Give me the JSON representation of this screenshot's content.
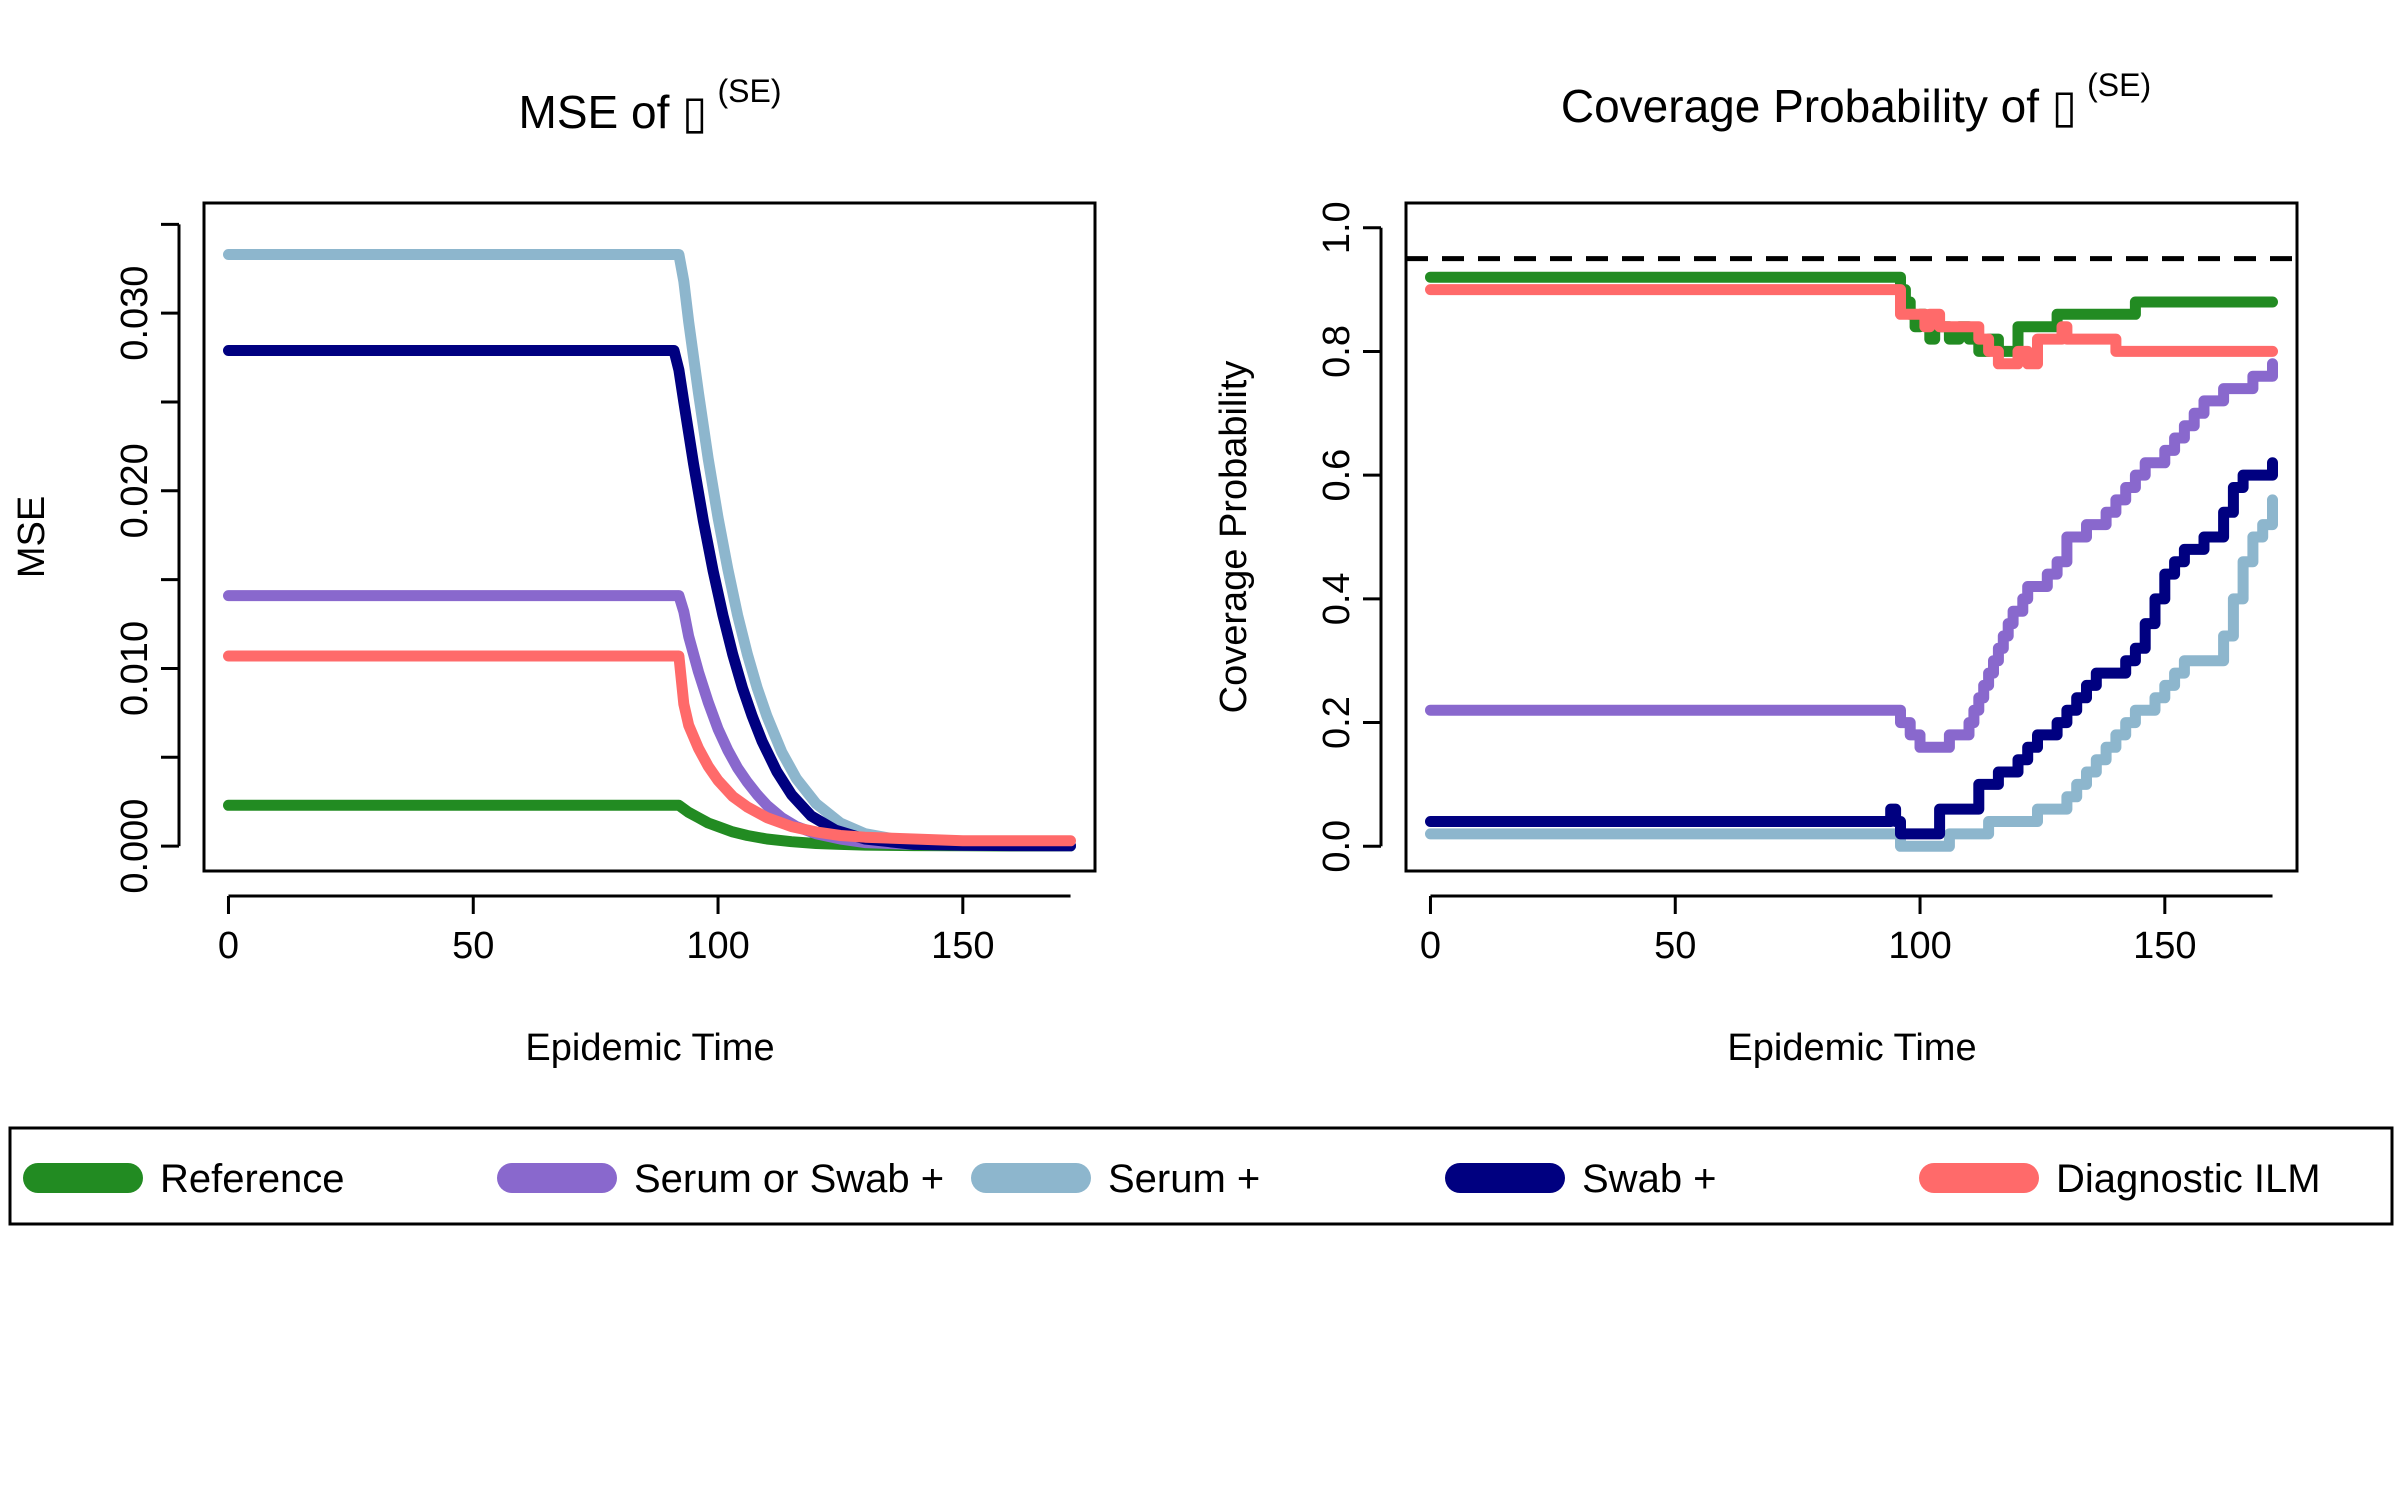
{
  "chart_data": [
    {
      "type": "line",
      "title": "MSE of ",
      "title_symbol": "▯",
      "title_superscript": "(SE)",
      "xlabel": "Epidemic Time",
      "ylabel": "MSE",
      "xlim": [
        -5,
        177
      ],
      "ylim": [
        -0.0014,
        0.0362
      ],
      "xticks": [
        0,
        50,
        100,
        150
      ],
      "yticks_labeled": [
        0.0,
        0.01,
        0.02,
        0.03
      ],
      "yticks_all": [
        0.0,
        0.005,
        0.01,
        0.015,
        0.02,
        0.025,
        0.03,
        0.035
      ],
      "ytick_labels": [
        "0.000",
        "0.010",
        "0.020",
        "0.030"
      ],
      "xtick_labels": [
        "0",
        "50",
        "100",
        "150"
      ],
      "grid": false,
      "series": [
        {
          "name": "Reference",
          "color": "#228B22",
          "x": [
            0,
            92,
            94,
            96,
            98,
            100,
            103,
            106,
            110,
            115,
            120,
            125,
            130,
            140,
            150,
            160,
            172
          ],
          "y": [
            0.0023,
            0.0023,
            0.0019,
            0.0016,
            0.0013,
            0.0011,
            0.0008,
            0.0006,
            0.0004,
            0.00025,
            0.00015,
            0.0001,
            6e-05,
            3e-05,
            2e-05,
            1e-05,
            1e-05
          ]
        },
        {
          "name": "Serum or Swab +",
          "color": "#8968CD",
          "x": [
            0,
            92,
            93,
            94,
            96,
            98,
            100,
            102,
            104,
            106,
            108,
            110,
            113,
            116,
            120,
            125,
            130,
            140,
            150,
            160,
            172
          ],
          "y": [
            0.0141,
            0.0141,
            0.0132,
            0.0118,
            0.0098,
            0.0081,
            0.0066,
            0.0054,
            0.0044,
            0.0036,
            0.0029,
            0.0023,
            0.0016,
            0.0011,
            0.0007,
            0.0004,
            0.0002,
            0.0001,
            5e-05,
            3e-05,
            2e-05
          ]
        },
        {
          "name": "Serum +",
          "color": "#8DB6CD",
          "x": [
            0,
            92,
            93,
            94,
            96,
            98,
            100,
            102,
            104,
            106,
            108,
            110,
            113,
            116,
            120,
            125,
            130,
            140,
            150,
            160,
            172
          ],
          "y": [
            0.0333,
            0.0333,
            0.0318,
            0.0295,
            0.0255,
            0.0218,
            0.0185,
            0.0156,
            0.013,
            0.0108,
            0.0089,
            0.0073,
            0.0053,
            0.0038,
            0.0024,
            0.0013,
            0.0007,
            0.0002,
            0.0001,
            5e-05,
            3e-05
          ]
        },
        {
          "name": "Swab +",
          "color": "#000080",
          "x": [
            0,
            91,
            92,
            93,
            95,
            97,
            99,
            101,
            103,
            105,
            107,
            109,
            112,
            115,
            119,
            124,
            130,
            140,
            150,
            160,
            172
          ],
          "y": [
            0.0279,
            0.0279,
            0.0268,
            0.025,
            0.0215,
            0.0183,
            0.0155,
            0.013,
            0.0108,
            0.0089,
            0.0073,
            0.0059,
            0.0042,
            0.0029,
            0.0017,
            0.0009,
            0.0004,
            0.0001,
            5e-05,
            3e-05,
            2e-05
          ]
        },
        {
          "name": "Diagnostic ILM",
          "color": "#FF6A6A",
          "x": [
            0,
            92,
            93,
            94,
            96,
            98,
            100,
            103,
            106,
            110,
            115,
            120,
            125,
            130,
            140,
            150,
            160,
            172
          ],
          "y": [
            0.0107,
            0.0107,
            0.008,
            0.0068,
            0.0055,
            0.0045,
            0.0037,
            0.0028,
            0.0022,
            0.0016,
            0.0011,
            0.0008,
            0.0006,
            0.0005,
            0.0004,
            0.0003,
            0.0003,
            0.0003
          ]
        }
      ]
    },
    {
      "type": "line",
      "title": "Coverage Probability of ",
      "title_symbol": "▯",
      "title_superscript": "(SE)",
      "xlabel": "Epidemic Time",
      "ylabel": "Coverage Probability",
      "xlim": [
        -5,
        177
      ],
      "ylim": [
        -0.04,
        1.04
      ],
      "xticks": [
        0,
        50,
        100,
        150
      ],
      "yticks": [
        0.0,
        0.2,
        0.4,
        0.6,
        0.8,
        1.0
      ],
      "xtick_labels": [
        "0",
        "50",
        "100",
        "150"
      ],
      "ytick_labels": [
        "0.0",
        "0.2",
        "0.4",
        "0.6",
        "0.8",
        "1.0"
      ],
      "grid": false,
      "reference_line": {
        "y": 0.95,
        "style": "dashed",
        "color": "#000000"
      },
      "series": [
        {
          "name": "Reference",
          "color": "#228B22",
          "x": [
            0,
            94,
            96,
            97,
            98,
            99,
            100,
            101,
            102,
            103,
            104,
            106,
            108,
            110,
            112,
            114,
            116,
            118,
            120,
            124,
            126,
            128,
            130,
            134,
            138,
            142,
            144,
            146,
            150,
            160,
            172
          ],
          "y": [
            0.92,
            0.92,
            0.9,
            0.88,
            0.86,
            0.84,
            0.86,
            0.84,
            0.82,
            0.84,
            0.84,
            0.82,
            0.84,
            0.82,
            0.8,
            0.82,
            0.8,
            0.8,
            0.84,
            0.84,
            0.84,
            0.86,
            0.86,
            0.86,
            0.86,
            0.86,
            0.88,
            0.88,
            0.88,
            0.88,
            0.88
          ]
        },
        {
          "name": "Serum or Swab +",
          "color": "#8968CD",
          "x": [
            0,
            94,
            96,
            98,
            100,
            102,
            104,
            106,
            108,
            110,
            111,
            112,
            113,
            114,
            115,
            116,
            117,
            118,
            119,
            120,
            121,
            122,
            124,
            126,
            128,
            130,
            132,
            134,
            136,
            138,
            140,
            142,
            144,
            146,
            148,
            150,
            152,
            154,
            156,
            158,
            160,
            162,
            164,
            166,
            168,
            170,
            172
          ],
          "y": [
            0.22,
            0.22,
            0.2,
            0.18,
            0.16,
            0.16,
            0.16,
            0.18,
            0.18,
            0.2,
            0.22,
            0.24,
            0.26,
            0.28,
            0.3,
            0.32,
            0.34,
            0.36,
            0.38,
            0.38,
            0.4,
            0.42,
            0.42,
            0.44,
            0.46,
            0.5,
            0.5,
            0.52,
            0.52,
            0.54,
            0.56,
            0.58,
            0.6,
            0.62,
            0.62,
            0.64,
            0.66,
            0.68,
            0.7,
            0.72,
            0.72,
            0.74,
            0.74,
            0.74,
            0.76,
            0.76,
            0.78
          ]
        },
        {
          "name": "Serum +",
          "color": "#8DB6CD",
          "x": [
            0,
            94,
            96,
            100,
            104,
            106,
            110,
            114,
            118,
            120,
            124,
            126,
            128,
            130,
            132,
            134,
            136,
            138,
            140,
            142,
            144,
            146,
            148,
            150,
            152,
            154,
            156,
            158,
            160,
            162,
            164,
            166,
            168,
            170,
            172
          ],
          "y": [
            0.02,
            0.02,
            0.0,
            0.0,
            0.0,
            0.02,
            0.02,
            0.04,
            0.04,
            0.04,
            0.06,
            0.06,
            0.06,
            0.08,
            0.1,
            0.12,
            0.14,
            0.16,
            0.18,
            0.2,
            0.22,
            0.22,
            0.24,
            0.26,
            0.28,
            0.3,
            0.3,
            0.3,
            0.3,
            0.34,
            0.4,
            0.46,
            0.5,
            0.52,
            0.56
          ]
        },
        {
          "name": "Swab +",
          "color": "#000080",
          "x": [
            0,
            93,
            94,
            95,
            96,
            98,
            100,
            102,
            104,
            106,
            108,
            110,
            112,
            114,
            116,
            118,
            120,
            122,
            124,
            126,
            128,
            130,
            132,
            134,
            136,
            138,
            140,
            142,
            144,
            146,
            148,
            150,
            152,
            154,
            156,
            158,
            160,
            162,
            164,
            166,
            168,
            170,
            172
          ],
          "y": [
            0.04,
            0.04,
            0.06,
            0.04,
            0.02,
            0.02,
            0.02,
            0.02,
            0.06,
            0.06,
            0.06,
            0.06,
            0.1,
            0.1,
            0.12,
            0.12,
            0.14,
            0.16,
            0.18,
            0.18,
            0.2,
            0.22,
            0.24,
            0.26,
            0.28,
            0.28,
            0.28,
            0.3,
            0.32,
            0.36,
            0.4,
            0.44,
            0.46,
            0.48,
            0.48,
            0.5,
            0.5,
            0.54,
            0.58,
            0.6,
            0.6,
            0.6,
            0.62
          ]
        },
        {
          "name": "Diagnostic ILM",
          "color": "#FF6A6A",
          "x": [
            0,
            94,
            96,
            98,
            100,
            101,
            102,
            104,
            108,
            110,
            112,
            114,
            116,
            118,
            120,
            122,
            124,
            126,
            128,
            129,
            130,
            132,
            134,
            138,
            140,
            150,
            160,
            172
          ],
          "y": [
            0.9,
            0.9,
            0.86,
            0.86,
            0.86,
            0.84,
            0.86,
            0.84,
            0.84,
            0.84,
            0.82,
            0.8,
            0.78,
            0.78,
            0.8,
            0.78,
            0.82,
            0.82,
            0.82,
            0.84,
            0.82,
            0.82,
            0.82,
            0.82,
            0.8,
            0.8,
            0.8,
            0.8
          ]
        }
      ]
    }
  ],
  "legend": {
    "placement": "bottom",
    "items": [
      {
        "label": "Reference",
        "color": "#228B22"
      },
      {
        "label": "Serum or Swab +",
        "color": "#8968CD"
      },
      {
        "label": "Serum +",
        "color": "#8DB6CD"
      },
      {
        "label": "Swab +",
        "color": "#000080"
      },
      {
        "label": "Diagnostic ILM",
        "color": "#FF6A6A"
      }
    ]
  }
}
